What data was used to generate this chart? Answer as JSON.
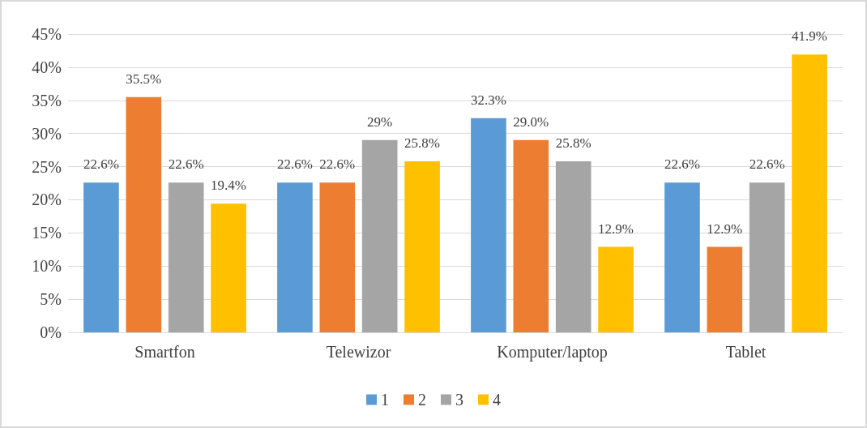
{
  "chart_data": {
    "type": "bar",
    "categories": [
      "Smartfon",
      "Telewizor",
      "Komputer/laptop",
      "Tablet"
    ],
    "series": [
      {
        "name": "1",
        "color": "#5b9bd5",
        "values": [
          22.6,
          22.6,
          32.3,
          22.6
        ],
        "value_labels": [
          "22.6%",
          "22.6%",
          "32.3%",
          "22.6%"
        ]
      },
      {
        "name": "2",
        "color": "#ed7d31",
        "values": [
          35.5,
          22.6,
          29.0,
          12.9
        ],
        "value_labels": [
          "35.5%",
          "22.6%",
          "29.0%",
          "12.9%"
        ]
      },
      {
        "name": "3",
        "color": "#a5a5a5",
        "values": [
          22.6,
          29,
          25.8,
          22.6
        ],
        "value_labels": [
          "22.6%",
          "29%",
          "25.8%",
          "22.6%"
        ]
      },
      {
        "name": "4",
        "color": "#ffc000",
        "values": [
          19.4,
          25.8,
          12.9,
          41.9
        ],
        "value_labels": [
          "19.4%",
          "25.8%",
          "12.9%",
          "41.9%"
        ]
      }
    ],
    "ylim": [
      0,
      45
    ],
    "yticks": [
      {
        "value": 0,
        "label": "0%"
      },
      {
        "value": 5,
        "label": "5%"
      },
      {
        "value": 10,
        "label": "10%"
      },
      {
        "value": 15,
        "label": "15%"
      },
      {
        "value": 20,
        "label": "20%"
      },
      {
        "value": 25,
        "label": "25%"
      },
      {
        "value": 30,
        "label": "30%"
      },
      {
        "value": 35,
        "label": "35%"
      },
      {
        "value": 40,
        "label": "40%"
      },
      {
        "value": 45,
        "label": "45%"
      }
    ],
    "grid": "y",
    "legend": "bottom"
  }
}
